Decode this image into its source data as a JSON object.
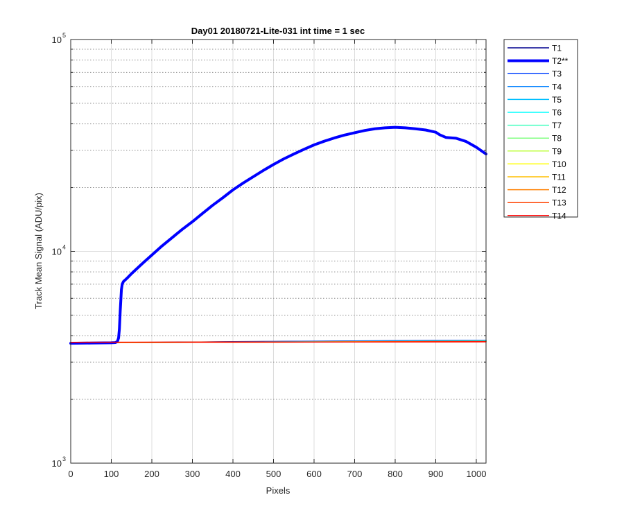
{
  "chart_data": {
    "type": "line",
    "title": "Day01 20180721-Lite-031 int time = 1 sec",
    "xlabel": "Pixels",
    "ylabel": "Track Mean Signal (ADU/pix)",
    "xlim": [
      0,
      1024
    ],
    "ylim": [
      1000,
      100000
    ],
    "yscale": "log",
    "grid": true,
    "legend_position": "outside-top-right",
    "x_ticks": [
      0,
      100,
      200,
      300,
      400,
      500,
      600,
      700,
      800,
      900,
      1000
    ],
    "y_ticks": [
      {
        "value": 1000,
        "base": "10",
        "exp": "3"
      },
      {
        "value": 10000,
        "base": "10",
        "exp": "4"
      },
      {
        "value": 100000,
        "base": "10",
        "exp": "5"
      }
    ],
    "series": [
      {
        "name": "T1",
        "color": "#00008f",
        "width": 1.5,
        "x": [
          0,
          100,
          200,
          300,
          400,
          500,
          600,
          700,
          800,
          900,
          1024
        ],
        "y": [
          3690,
          3700,
          3715,
          3730,
          3745,
          3755,
          3765,
          3775,
          3785,
          3795,
          3800
        ]
      },
      {
        "name": "T2**",
        "color": "#0000ff",
        "width": 4,
        "x": [
          0,
          50,
          100,
          110,
          115,
          118,
          120,
          122,
          125,
          127,
          130,
          140,
          150,
          175,
          200,
          225,
          250,
          275,
          300,
          325,
          350,
          375,
          400,
          425,
          450,
          475,
          500,
          525,
          550,
          575,
          600,
          625,
          650,
          675,
          700,
          725,
          750,
          775,
          800,
          825,
          850,
          875,
          900,
          910,
          925,
          950,
          975,
          1000,
          1024
        ],
        "y": [
          3680,
          3690,
          3700,
          3710,
          3750,
          3900,
          4300,
          5200,
          6600,
          7000,
          7200,
          7500,
          7850,
          8700,
          9600,
          10600,
          11600,
          12700,
          13800,
          15100,
          16500,
          17900,
          19500,
          21000,
          22500,
          24100,
          25700,
          27300,
          28800,
          30300,
          31800,
          33100,
          34300,
          35400,
          36300,
          37200,
          37900,
          38300,
          38500,
          38300,
          37900,
          37400,
          36500,
          35500,
          34500,
          34200,
          33000,
          31000,
          28800
        ]
      },
      {
        "name": "T3",
        "color": "#0040ff",
        "width": 1.5,
        "x": [
          0,
          1024
        ],
        "y": [
          3700,
          3800
        ]
      },
      {
        "name": "T4",
        "color": "#0080ff",
        "width": 1.5,
        "x": [
          0,
          1024
        ],
        "y": [
          3700,
          3790
        ]
      },
      {
        "name": "T5",
        "color": "#00bfff",
        "width": 1.5,
        "x": [
          0,
          1024
        ],
        "y": [
          3700,
          3780
        ]
      },
      {
        "name": "T6",
        "color": "#00ffff",
        "width": 1.5,
        "x": [
          0,
          1024
        ],
        "y": [
          3700,
          3770
        ]
      },
      {
        "name": "T7",
        "color": "#40ffbf",
        "width": 1.5,
        "x": [
          0,
          1024
        ],
        "y": [
          3700,
          3765
        ]
      },
      {
        "name": "T8",
        "color": "#80ff80",
        "width": 1.5,
        "x": [
          0,
          1024
        ],
        "y": [
          3700,
          3760
        ]
      },
      {
        "name": "T9",
        "color": "#bfff40",
        "width": 1.5,
        "x": [
          0,
          1024
        ],
        "y": [
          3705,
          3755
        ]
      },
      {
        "name": "T10",
        "color": "#ffff00",
        "width": 1.5,
        "x": [
          0,
          1024
        ],
        "y": [
          3705,
          3750
        ]
      },
      {
        "name": "T11",
        "color": "#ffbf00",
        "width": 1.5,
        "x": [
          0,
          1024
        ],
        "y": [
          3710,
          3748
        ]
      },
      {
        "name": "T12",
        "color": "#ff8000",
        "width": 1.5,
        "x": [
          0,
          1024
        ],
        "y": [
          3712,
          3745
        ]
      },
      {
        "name": "T13",
        "color": "#ff4000",
        "width": 1.5,
        "x": [
          0,
          1024
        ],
        "y": [
          3715,
          3742
        ]
      },
      {
        "name": "T14",
        "color": "#ff0000",
        "width": 1.5,
        "x": [
          0,
          1024
        ],
        "y": [
          3720,
          3740
        ]
      }
    ]
  }
}
